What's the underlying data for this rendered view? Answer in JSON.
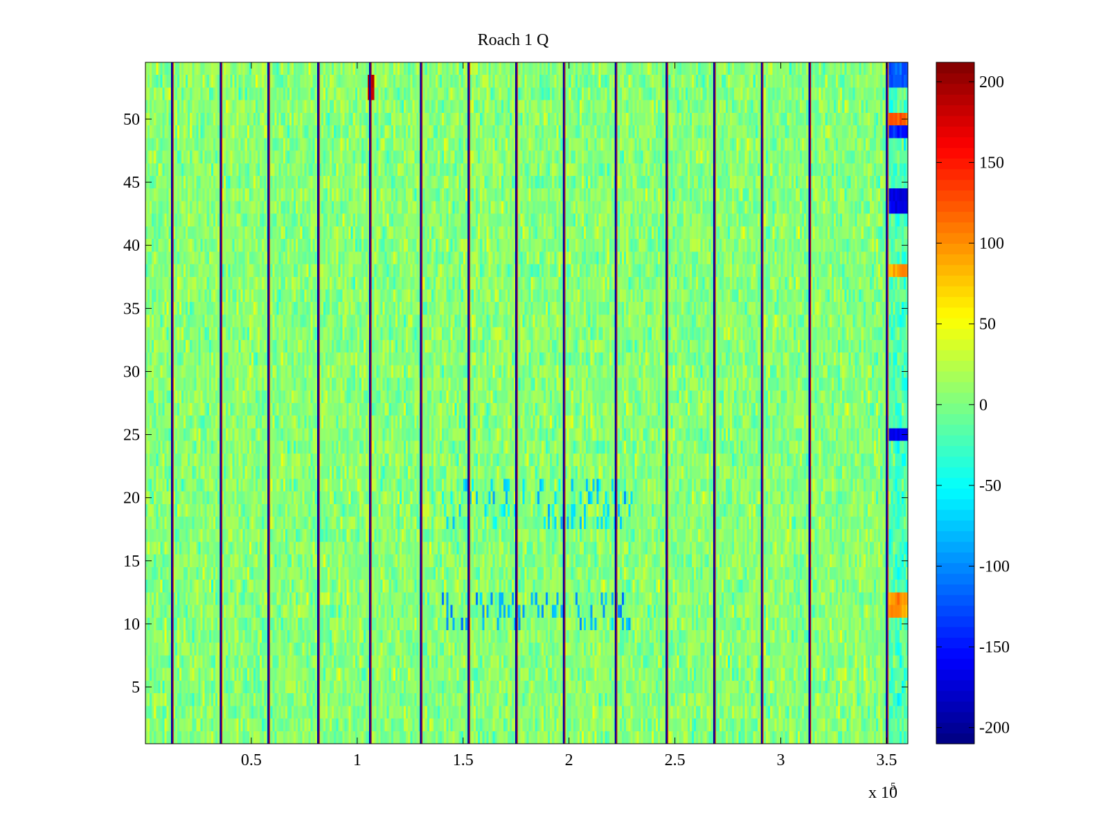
{
  "chart_data": {
    "type": "heatmap",
    "title": "Roach 1 Q",
    "xlabel": "",
    "ylabel": "",
    "x_multiplier_label": "x 10",
    "x_multiplier_exponent": "5",
    "xlim": [
      0,
      3.6
    ],
    "ylim": [
      0.5,
      54.5
    ],
    "rows": 54,
    "x_ticks": [
      0.5,
      1,
      1.5,
      2,
      2.5,
      3,
      3.5
    ],
    "x_tick_labels": [
      "0.5",
      "1",
      "1.5",
      "2",
      "2.5",
      "3",
      "3.5"
    ],
    "y_ticks": [
      5,
      10,
      15,
      20,
      25,
      30,
      35,
      40,
      45,
      50
    ],
    "y_tick_labels": [
      "5",
      "10",
      "15",
      "20",
      "25",
      "30",
      "35",
      "40",
      "45",
      "50"
    ],
    "colorbar": {
      "colormap": "jet",
      "clim": [
        -210,
        212
      ],
      "ticks": [
        200,
        150,
        100,
        50,
        0,
        -50,
        -100,
        -150,
        -200
      ],
      "tick_labels": [
        "200",
        "150",
        "100",
        "50",
        "0",
        "-50",
        "-100",
        "-150",
        "-200"
      ]
    },
    "vertical_artifact_lines_x": [
      0.125,
      0.355,
      0.58,
      0.815,
      1.06,
      1.3,
      1.525,
      1.75,
      1.975,
      2.22,
      2.46,
      2.685,
      2.91,
      3.135,
      3.5
    ],
    "background_level_mean": 5,
    "background_level_spread": 22,
    "notable_regions": [
      {
        "x_range": [
          3.51,
          3.6
        ],
        "rows": [
          53,
          54
        ],
        "value": -120
      },
      {
        "x_range": [
          3.51,
          3.6
        ],
        "rows": [
          50
        ],
        "value": 120
      },
      {
        "x_range": [
          3.51,
          3.6
        ],
        "rows": [
          49
        ],
        "value": -150
      },
      {
        "x_range": [
          3.51,
          3.6
        ],
        "rows": [
          43,
          44
        ],
        "value": -170
      },
      {
        "x_range": [
          3.51,
          3.6
        ],
        "rows": [
          38
        ],
        "value": 90
      },
      {
        "x_range": [
          3.51,
          3.6
        ],
        "rows": [
          25
        ],
        "value": -160
      },
      {
        "x_range": [
          3.51,
          3.6
        ],
        "rows": [
          11,
          12
        ],
        "value": 100
      },
      {
        "x_range": [
          1.05,
          1.08
        ],
        "rows": [
          52,
          53
        ],
        "value": 190
      },
      {
        "x_range": [
          1.4,
          2.3
        ],
        "rows": [
          10,
          11,
          12
        ],
        "value": -90
      },
      {
        "x_range": [
          1.4,
          2.3
        ],
        "rows": [
          18,
          19,
          20,
          21
        ],
        "value": -70
      }
    ]
  }
}
